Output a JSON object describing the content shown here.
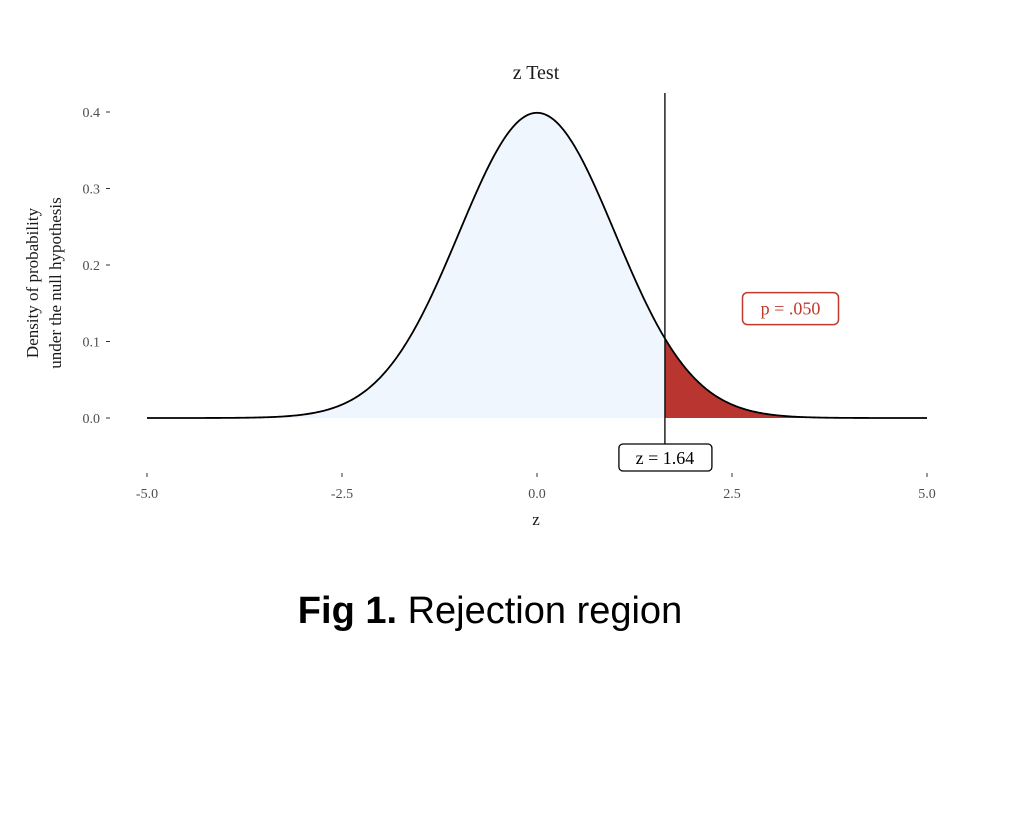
{
  "chart_data": {
    "type": "area",
    "title": "z Test",
    "xlabel": "z",
    "ylabel_lines": [
      "Density of probability",
      "under the null hypothesis"
    ],
    "xlim": [
      -5.0,
      5.0
    ],
    "ylim": [
      0.0,
      0.4
    ],
    "x_ticks": [
      -5.0,
      -2.5,
      0.0,
      2.5,
      5.0
    ],
    "x_tick_labels": [
      "-5.0",
      "-2.5",
      "0.0",
      "2.5",
      "5.0"
    ],
    "y_ticks": [
      0.0,
      0.1,
      0.2,
      0.3,
      0.4
    ],
    "y_tick_labels": [
      "0.0",
      "0.1",
      "0.2",
      "0.3",
      "0.4"
    ],
    "series": [
      {
        "distribution": "standard normal",
        "mean": 0,
        "sd": 1,
        "fill_color": "#f0f6fd",
        "line_color": "#000000"
      }
    ],
    "critical_value": 1.64,
    "rejection_region": {
      "from": 1.64,
      "to": 5.0,
      "fill_color": "#b93630"
    },
    "annotations": {
      "critical_label": "z = 1.64",
      "p_label": "p = .050",
      "p_label_color": "#c0392b",
      "p_label_x": 3.25,
      "p_label_y": 0.143
    },
    "grid": false
  },
  "caption": {
    "bold": "Fig 1.",
    "text": " Rejection region"
  }
}
